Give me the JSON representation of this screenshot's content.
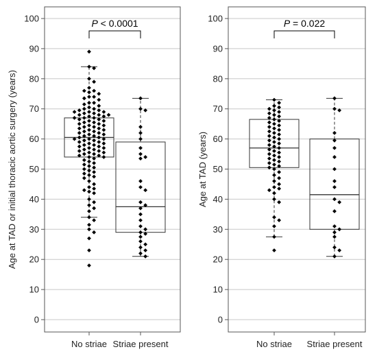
{
  "chart_data": [
    {
      "type": "box",
      "ylabel": "Age at TAD or initial thoracic aortic surgery (years)",
      "categories": [
        "No striae",
        "Striae present"
      ],
      "ylim": [
        0,
        100
      ],
      "yticks": [
        0,
        10,
        20,
        30,
        40,
        50,
        60,
        70,
        80,
        90,
        100
      ],
      "grid": true,
      "annotation": {
        "p_symbol": "P",
        "p_text": " < 0.0001"
      },
      "boxes": [
        {
          "category": "No striae",
          "whisker_low": 34,
          "q1": 54,
          "median": 60.5,
          "q3": 67,
          "whisker_high": 84
        },
        {
          "category": "Striae present",
          "whisker_low": 21,
          "q1": 29,
          "median": 37.5,
          "q3": 59,
          "whisker_high": 73.5
        }
      ],
      "points": [
        {
          "category": "No striae",
          "values": [
            89,
            84,
            83.5,
            80,
            79,
            77,
            76,
            76,
            75.5,
            75,
            74,
            74,
            73.5,
            73,
            72,
            72,
            71.5,
            71,
            70.5,
            70,
            70,
            69.5,
            69.5,
            69,
            69,
            69,
            68.5,
            68.5,
            68,
            68,
            68,
            67.5,
            67.5,
            67,
            67,
            67,
            66.5,
            66.5,
            66,
            66,
            65.5,
            65.5,
            65,
            65,
            64.5,
            64.5,
            64,
            64,
            63.5,
            63.5,
            63,
            63,
            62.5,
            62.5,
            62,
            62,
            61.5,
            61.5,
            61,
            61,
            60.5,
            60.5,
            60,
            60,
            60,
            59.5,
            59.5,
            59,
            59,
            58.5,
            58.5,
            58,
            58,
            57.5,
            57.5,
            57,
            57,
            56.5,
            56.5,
            56,
            56,
            55.5,
            55.5,
            55,
            55,
            54.5,
            54.5,
            54,
            54,
            53.5,
            53,
            52.5,
            52,
            51.5,
            51,
            50.5,
            50,
            49.5,
            49,
            48.5,
            48,
            47.5,
            47,
            46,
            45,
            44,
            43.5,
            43,
            42.5,
            42,
            40,
            39,
            38,
            37,
            36,
            34,
            33,
            31.5,
            30,
            29,
            27,
            23,
            18
          ]
        },
        {
          "category": "Striae present",
          "values": [
            73.5,
            70,
            69.5,
            64,
            62,
            60,
            57,
            55,
            54,
            53.5,
            46,
            44,
            43,
            39,
            38,
            37,
            35,
            33,
            31,
            30,
            29,
            28.5,
            27.5,
            26,
            25,
            24,
            23,
            22,
            21
          ]
        }
      ]
    },
    {
      "type": "box",
      "ylabel": "Age at TAD (years)",
      "categories": [
        "No striae",
        "Striae present"
      ],
      "ylim": [
        0,
        100
      ],
      "yticks": [
        0,
        10,
        20,
        30,
        40,
        50,
        60,
        70,
        80,
        90,
        100
      ],
      "grid": true,
      "annotation": {
        "p_symbol": "P",
        "p_text": " = 0.022"
      },
      "boxes": [
        {
          "category": "No striae",
          "whisker_low": 27.5,
          "q1": 50.5,
          "median": 57,
          "q3": 66.5,
          "whisker_high": 73
        },
        {
          "category": "Striae present",
          "whisker_low": 21,
          "q1": 30,
          "median": 41.5,
          "q3": 60,
          "whisker_high": 73.5
        }
      ],
      "points": [
        {
          "category": "No striae",
          "values": [
            73,
            72,
            71,
            70.5,
            70,
            69.5,
            69,
            68.5,
            68,
            67.5,
            67,
            66.5,
            66,
            65.5,
            65,
            64.5,
            64,
            63.5,
            63,
            62.5,
            62,
            61.5,
            61,
            60.5,
            60,
            59.5,
            59,
            58.5,
            58,
            57.5,
            57,
            56.5,
            56,
            55.5,
            55,
            54.5,
            54,
            53.5,
            53,
            52.5,
            52,
            51.5,
            51,
            50.5,
            50,
            49,
            48,
            47,
            46,
            45,
            44,
            43.5,
            43,
            42,
            40,
            39,
            34,
            33,
            31,
            27.5,
            23
          ]
        },
        {
          "category": "Striae present",
          "values": [
            73.5,
            70,
            69.5,
            62,
            59.5,
            57,
            54,
            50,
            46,
            44,
            40,
            39,
            36,
            31,
            30,
            29,
            27.5,
            24,
            23,
            21
          ]
        }
      ]
    }
  ]
}
